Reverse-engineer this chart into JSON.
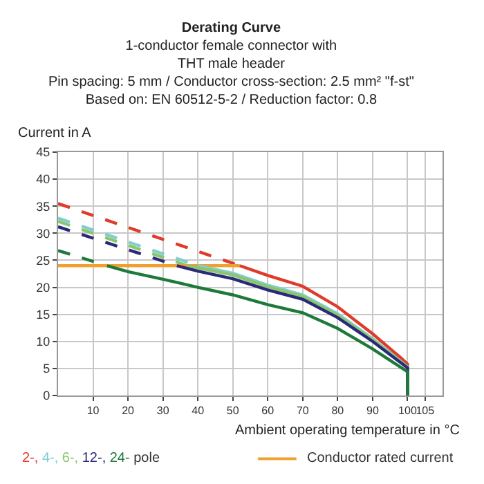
{
  "chart_data": {
    "type": "line",
    "title": "Derating Curve",
    "subtitle": "1-conductor female connector with\nTHT male header\nPin spacing: 5 mm / Conductor cross-section: 2.5 mm² \"f-st\"\nBased on: EN 60512-5-2 / Reduction factor: 0.8",
    "xlabel": "Ambient operating temperature in °C",
    "ylabel": "Current in A",
    "xlim": [
      0,
      110
    ],
    "xticks": [
      10,
      20,
      30,
      40,
      50,
      60,
      70,
      80,
      90,
      100,
      105
    ],
    "ylim": [
      0,
      45
    ],
    "yticks": [
      0,
      5,
      10,
      15,
      20,
      25,
      30,
      35,
      40,
      45
    ],
    "grid": true,
    "legend": "bottom",
    "marker": "none",
    "annotations": [
      "pole"
    ],
    "series": [
      {
        "color": "#e03a2a",
        "line_style": "dashed",
        "x": [
          0,
          52
        ],
        "values": [
          35.5,
          24
        ]
      },
      {
        "color": "#7fcfcf",
        "line_style": "dashed",
        "x": [
          0,
          40
        ],
        "values": [
          32.8,
          24
        ]
      },
      {
        "color": "#8cc56a",
        "line_style": "dashed",
        "x": [
          0,
          37
        ],
        "values": [
          32.2,
          24
        ]
      },
      {
        "color": "#2a2a7a",
        "line_style": "dashed",
        "x": [
          0,
          34
        ],
        "values": [
          31.2,
          24
        ]
      },
      {
        "color": "#1e7a3a",
        "line_style": "dashed",
        "x": [
          0,
          14
        ],
        "values": [
          26.8,
          24
        ]
      },
      {
        "name": "Conductor rated current",
        "color": "#f0a030",
        "line_style": "solid",
        "x": [
          0,
          52
        ],
        "values": [
          24,
          24
        ]
      },
      {
        "name": "2-,",
        "color": "#e03a2a",
        "line_style": "solid",
        "x": [
          52,
          60,
          70,
          80,
          90,
          98,
          100,
          100
        ],
        "values": [
          24,
          22.2,
          20.2,
          16.4,
          11.4,
          7,
          5.8,
          0
        ]
      },
      {
        "name": "4-,",
        "color": "#7fcfcf",
        "line_style": "solid",
        "x": [
          40,
          50,
          60,
          70,
          80,
          90,
          100,
          100
        ],
        "values": [
          24,
          22.6,
          20.4,
          18.6,
          15.1,
          10.5,
          5.3,
          0
        ]
      },
      {
        "name": "6-,",
        "color": "#8cc56a",
        "line_style": "solid",
        "x": [
          37,
          50,
          60,
          70,
          80,
          90,
          100,
          100
        ],
        "values": [
          24,
          22.3,
          20.1,
          18.3,
          14.8,
          10.3,
          5.2,
          0
        ]
      },
      {
        "name": "12-,",
        "color": "#2a2a7a",
        "line_style": "solid",
        "x": [
          34,
          40,
          50,
          60,
          70,
          80,
          90,
          100,
          100
        ],
        "values": [
          24,
          23,
          21.6,
          19.5,
          17.8,
          14.4,
          10,
          5.1,
          0
        ]
      },
      {
        "name": "24-",
        "color": "#1e7a3a",
        "line_style": "solid",
        "x": [
          14,
          20,
          30,
          40,
          50,
          60,
          70,
          80,
          90,
          100,
          100
        ],
        "values": [
          24,
          22.9,
          21.5,
          20,
          18.6,
          16.8,
          15.3,
          12.4,
          8.6,
          4.4,
          0
        ]
      }
    ]
  }
}
